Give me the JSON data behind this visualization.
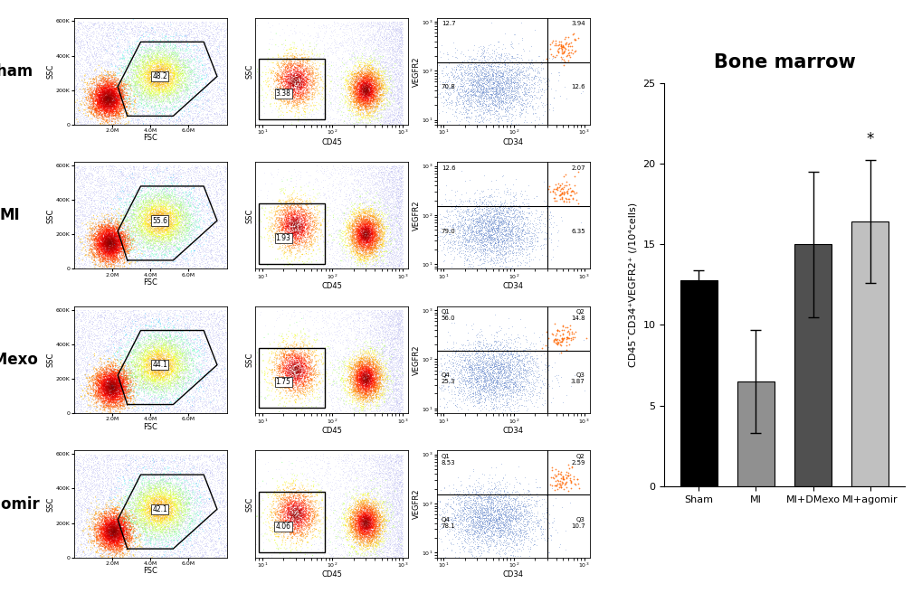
{
  "title": "Bone marrow",
  "categories": [
    "Sham",
    "MI",
    "MI+DMexo",
    "MI+agomir"
  ],
  "values": [
    12.8,
    6.5,
    15.0,
    16.4
  ],
  "errors": [
    0.6,
    3.2,
    4.5,
    3.8
  ],
  "bar_colors": [
    "#000000",
    "#909090",
    "#505050",
    "#c0c0c0"
  ],
  "ylabel": "CD45¯CD34⁺VEGFR2⁺ (/10⁴cells)",
  "ylim": [
    0,
    25
  ],
  "yticks": [
    0,
    5,
    10,
    15,
    20,
    25
  ],
  "significance": [
    false,
    false,
    false,
    true
  ],
  "significance_label": "*",
  "row_labels": [
    "Sham",
    "MI",
    "DMexo",
    "agomir"
  ],
  "col_xlabels": [
    "FSC",
    "CD45",
    "CD34"
  ],
  "col_ylabels": [
    "SSC",
    "SSC",
    "VEGFR2"
  ],
  "background_color": "#ffffff",
  "title_fontsize": 15,
  "axis_fontsize": 8,
  "tick_fontsize": 8,
  "bar_width": 0.65,
  "capsize": 4,
  "gate_labels": [
    [
      "48.2",
      "3.38",
      [
        "12.7",
        "3.94",
        "70.8",
        "12.6"
      ]
    ],
    [
      "55.6",
      "1.93",
      [
        "12.6",
        "2.07",
        "79.0",
        "6.35"
      ]
    ],
    [
      "44.1",
      "1.75",
      [
        "Q1\n56.0",
        "Q2\n14.8",
        "Q4\n25.3",
        "Q3\n3.87"
      ]
    ],
    [
      "42.1",
      "4.06",
      [
        "Q1\n8.53",
        "Q2\n2.59",
        "Q4\n78.1",
        "Q3\n10.7"
      ]
    ]
  ]
}
